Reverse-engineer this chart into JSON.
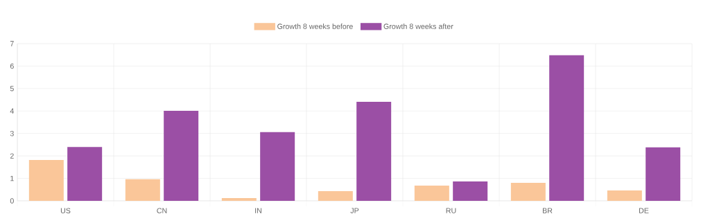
{
  "chart_data": {
    "type": "bar",
    "categories": [
      "US",
      "CN",
      "IN",
      "JP",
      "RU",
      "BR",
      "DE"
    ],
    "series": [
      {
        "name": "Growth 8 weeks before",
        "color": "#fac699",
        "values": [
          1.82,
          0.96,
          0.12,
          0.43,
          0.68,
          0.8,
          0.46
        ]
      },
      {
        "name": "Growth 8 weeks after",
        "color": "#9b4fa5",
        "values": [
          2.4,
          4.01,
          3.06,
          4.41,
          0.86,
          6.48,
          2.38
        ]
      }
    ],
    "ylim": [
      0,
      7
    ],
    "yticks": [
      0,
      1,
      2,
      3,
      4,
      5,
      6,
      7
    ],
    "grid": true,
    "legend": "top"
  }
}
